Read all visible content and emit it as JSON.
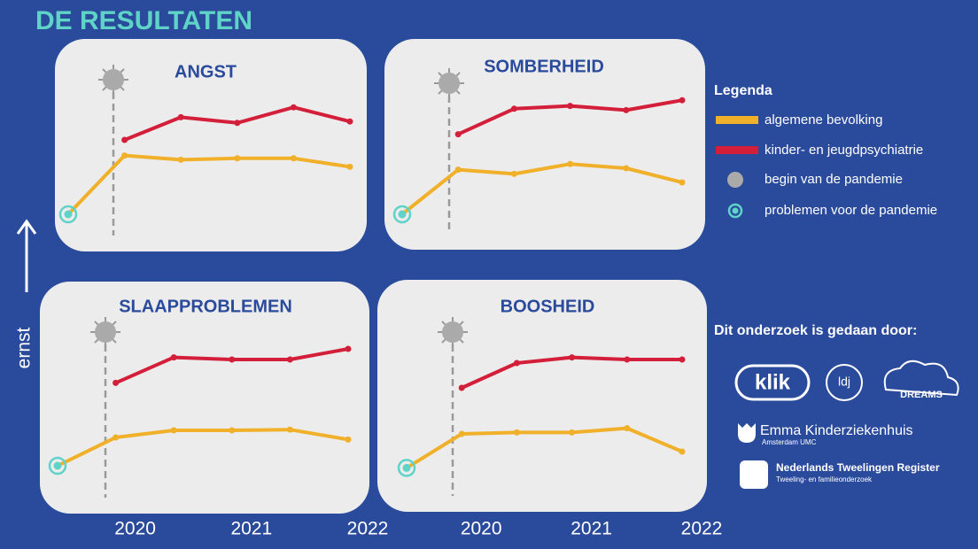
{
  "header": {
    "title": "DE RESULTATEN"
  },
  "y_axis_label": "ernst",
  "legend": {
    "title": "Legenda",
    "pandemic": "begin van de pandemie",
    "pre": "problemen voor de pandemie"
  },
  "credits": {
    "title": "Dit onderzoek is gedaan door:",
    "logos": [
      "klik",
      "ldj",
      "DREAMS",
      "Emma Kinderziekenhuis",
      "Amsterdam UMC",
      "Nederlands Tweelingen Register",
      "Tweeling- en familieonderzoek"
    ]
  },
  "chart_data": [
    {
      "type": "line",
      "title": "ANGST",
      "categories": [
        null,
        null,
        null,
        null,
        null,
        null
      ],
      "ylim": [
        0,
        10
      ],
      "series": [
        {
          "name": "algemene bevolking",
          "color": "#f0b02a",
          "values": [
            1.25,
            5.4,
            5.1,
            5.2,
            5.2,
            4.6
          ]
        },
        {
          "name": "kinder- en jeugdpsychiatrie",
          "color": "#d41f3a",
          "values": [
            null,
            6.5,
            8.1,
            7.7,
            8.8,
            7.8
          ]
        }
      ]
    },
    {
      "type": "line",
      "title": "SOMBERHEID",
      "categories": [
        null,
        null,
        null,
        null,
        null,
        null
      ],
      "ylim": [
        0,
        10
      ],
      "series": [
        {
          "color": "#f0b02a",
          "values": [
            1.25,
            4.4,
            4.1,
            4.8,
            4.5,
            3.5
          ]
        },
        {
          "color": "#d41f3a",
          "values": [
            null,
            6.9,
            8.7,
            8.9,
            8.6,
            9.3
          ]
        }
      ]
    },
    {
      "type": "line",
      "title": "SLAAPPROBLEMEN",
      "categories": [
        null,
        "2020",
        null,
        "2021",
        null,
        "2022"
      ],
      "ylim": [
        0,
        10
      ],
      "series": [
        {
          "color": "#f0b02a",
          "values": [
            1.25,
            3.25,
            3.75,
            3.75,
            3.8,
            3.1
          ]
        },
        {
          "color": "#d41f3a",
          "values": [
            null,
            7.1,
            8.9,
            8.75,
            8.75,
            9.5
          ]
        }
      ]
    },
    {
      "type": "line",
      "title": "BOOSHEID",
      "categories": [
        null,
        "2020",
        null,
        "2021",
        null,
        "2022"
      ],
      "ylim": [
        0,
        10
      ],
      "series": [
        {
          "color": "#f0b02a",
          "values": [
            1.1,
            3.5,
            3.6,
            3.6,
            3.9,
            2.25
          ]
        },
        {
          "color": "#d41f3a",
          "values": [
            null,
            6.75,
            8.5,
            8.9,
            8.75,
            8.75
          ]
        }
      ]
    }
  ]
}
